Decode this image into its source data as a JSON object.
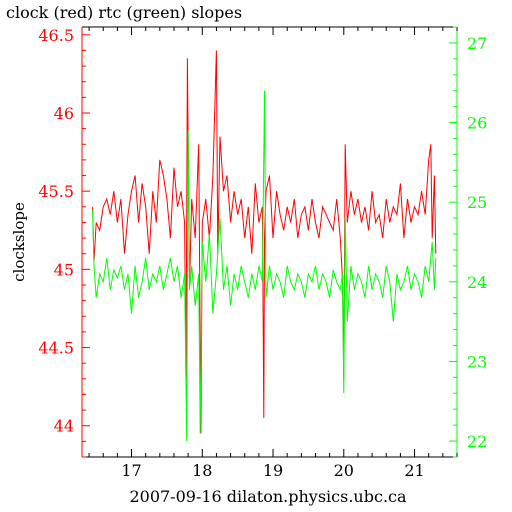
{
  "chart_data": {
    "type": "line",
    "title": "clock (red) rtc (green) slopes",
    "xlabel": "2007-09-16 dilaton.physics.ubc.ca",
    "ylabel": "clockslope",
    "xlim": [
      16.3,
      21.6
    ],
    "ylim_left": [
      43.8,
      46.55
    ],
    "ylim_right": [
      21.8,
      27.2
    ],
    "x_ticks": [
      "17",
      "18",
      "19",
      "20",
      "21"
    ],
    "left_ticks": [
      "44",
      "44.5",
      "45",
      "45.5",
      "46",
      "46.5"
    ],
    "right_ticks": [
      "22",
      "23",
      "24",
      "25",
      "26",
      "27"
    ],
    "grid": false,
    "series": [
      {
        "name": "clock",
        "axis": "left",
        "color": "#ff0000",
        "x": [
          16.45,
          16.47,
          16.5,
          16.55,
          16.6,
          16.65,
          16.7,
          16.75,
          16.8,
          16.85,
          16.9,
          16.95,
          17.0,
          17.05,
          17.1,
          17.15,
          17.2,
          17.25,
          17.3,
          17.35,
          17.4,
          17.45,
          17.5,
          17.55,
          17.6,
          17.65,
          17.7,
          17.75,
          17.77,
          17.79,
          17.82,
          17.85,
          17.9,
          17.95,
          17.98,
          18.0,
          18.05,
          18.1,
          18.15,
          18.2,
          18.22,
          18.25,
          18.3,
          18.35,
          18.4,
          18.45,
          18.5,
          18.55,
          18.6,
          18.65,
          18.7,
          18.75,
          18.8,
          18.85,
          18.87,
          18.88,
          18.9,
          18.95,
          19.0,
          19.05,
          19.1,
          19.15,
          19.2,
          19.25,
          19.3,
          19.35,
          19.4,
          19.45,
          19.5,
          19.55,
          19.6,
          19.65,
          19.7,
          19.75,
          19.8,
          19.85,
          19.9,
          19.95,
          19.98,
          20.0,
          20.02,
          20.05,
          20.1,
          20.15,
          20.2,
          20.25,
          20.3,
          20.35,
          20.4,
          20.45,
          20.5,
          20.55,
          20.6,
          20.65,
          20.7,
          20.75,
          20.8,
          20.85,
          20.9,
          20.95,
          21.0,
          21.05,
          21.1,
          21.15,
          21.2,
          21.23,
          21.25,
          21.28,
          21.3
        ],
        "y": [
          45.4,
          45.05,
          45.3,
          45.25,
          45.4,
          45.45,
          45.35,
          45.5,
          45.3,
          45.45,
          45.1,
          45.35,
          45.5,
          45.6,
          45.3,
          45.55,
          45.4,
          45.1,
          45.5,
          45.3,
          45.7,
          45.6,
          45.45,
          45.2,
          45.65,
          45.4,
          45.5,
          45.3,
          44.3,
          46.35,
          44.9,
          45.45,
          45.2,
          45.8,
          43.95,
          45.3,
          45.45,
          45.2,
          45.6,
          46.4,
          45.1,
          45.85,
          45.5,
          45.6,
          45.3,
          45.5,
          45.35,
          45.45,
          45.2,
          45.4,
          45.1,
          45.55,
          45.3,
          45.4,
          44.05,
          45.2,
          45.5,
          45.6,
          45.2,
          45.5,
          45.35,
          45.25,
          45.4,
          45.3,
          45.45,
          45.2,
          45.35,
          45.4,
          45.25,
          45.45,
          45.3,
          45.2,
          45.4,
          45.35,
          45.3,
          45.25,
          45.45,
          45.2,
          44.95,
          44.3,
          45.8,
          45.3,
          45.5,
          45.35,
          45.45,
          45.3,
          45.4,
          45.25,
          45.5,
          45.3,
          45.35,
          45.2,
          45.45,
          45.3,
          45.4,
          45.35,
          45.55,
          45.2,
          45.45,
          45.3,
          45.4,
          45.35,
          45.5,
          45.35,
          45.7,
          45.8,
          45.2,
          45.6,
          45.1
        ]
      },
      {
        "name": "rtc",
        "axis": "right",
        "color": "#00ff00",
        "x": [
          16.45,
          16.47,
          16.5,
          16.55,
          16.6,
          16.65,
          16.7,
          16.75,
          16.8,
          16.85,
          16.9,
          16.95,
          17.0,
          17.05,
          17.1,
          17.15,
          17.2,
          17.25,
          17.3,
          17.35,
          17.4,
          17.45,
          17.5,
          17.55,
          17.6,
          17.65,
          17.7,
          17.75,
          17.78,
          17.8,
          17.82,
          17.85,
          17.9,
          17.95,
          17.97,
          18.0,
          18.05,
          18.1,
          18.15,
          18.2,
          18.25,
          18.3,
          18.35,
          18.4,
          18.45,
          18.5,
          18.55,
          18.6,
          18.65,
          18.7,
          18.75,
          18.8,
          18.85,
          18.88,
          18.9,
          18.95,
          19.0,
          19.05,
          19.1,
          19.15,
          19.2,
          19.25,
          19.3,
          19.35,
          19.4,
          19.45,
          19.5,
          19.55,
          19.6,
          19.65,
          19.7,
          19.75,
          19.8,
          19.85,
          19.9,
          19.95,
          19.98,
          20.0,
          20.02,
          20.05,
          20.1,
          20.15,
          20.2,
          20.25,
          20.3,
          20.35,
          20.4,
          20.45,
          20.5,
          20.55,
          20.6,
          20.65,
          20.7,
          20.75,
          20.8,
          20.85,
          20.9,
          20.95,
          21.0,
          21.05,
          21.1,
          21.15,
          21.2,
          21.25,
          21.28,
          21.3
        ],
        "y": [
          24.9,
          24.2,
          23.8,
          24.1,
          24.0,
          24.3,
          23.9,
          24.15,
          24.05,
          24.2,
          23.9,
          24.1,
          23.6,
          24.2,
          23.8,
          24.0,
          24.3,
          23.9,
          24.1,
          24.0,
          24.2,
          23.9,
          24.1,
          24.3,
          24.0,
          24.2,
          23.8,
          24.1,
          22.0,
          25.9,
          23.9,
          24.2,
          23.7,
          24.1,
          22.1,
          24.5,
          24.0,
          24.6,
          23.6,
          24.1,
          24.8,
          23.9,
          24.2,
          23.7,
          24.1,
          23.9,
          24.2,
          24.0,
          23.8,
          24.1,
          23.9,
          24.2,
          24.0,
          26.4,
          23.8,
          24.2,
          23.9,
          24.1,
          24.0,
          23.8,
          24.2,
          24.0,
          23.9,
          24.1,
          24.0,
          23.8,
          24.1,
          24.0,
          24.2,
          23.9,
          24.1,
          24.0,
          23.8,
          24.15,
          24.0,
          23.9,
          24.1,
          22.6,
          24.8,
          23.5,
          24.2,
          23.9,
          24.1,
          24.0,
          23.8,
          24.2,
          23.9,
          24.1,
          24.0,
          23.8,
          24.2,
          24.0,
          23.5,
          24.1,
          23.9,
          24.0,
          24.2,
          23.9,
          24.1,
          24.0,
          23.8,
          24.2,
          24.0,
          24.5,
          23.9,
          24.3
        ]
      }
    ]
  }
}
